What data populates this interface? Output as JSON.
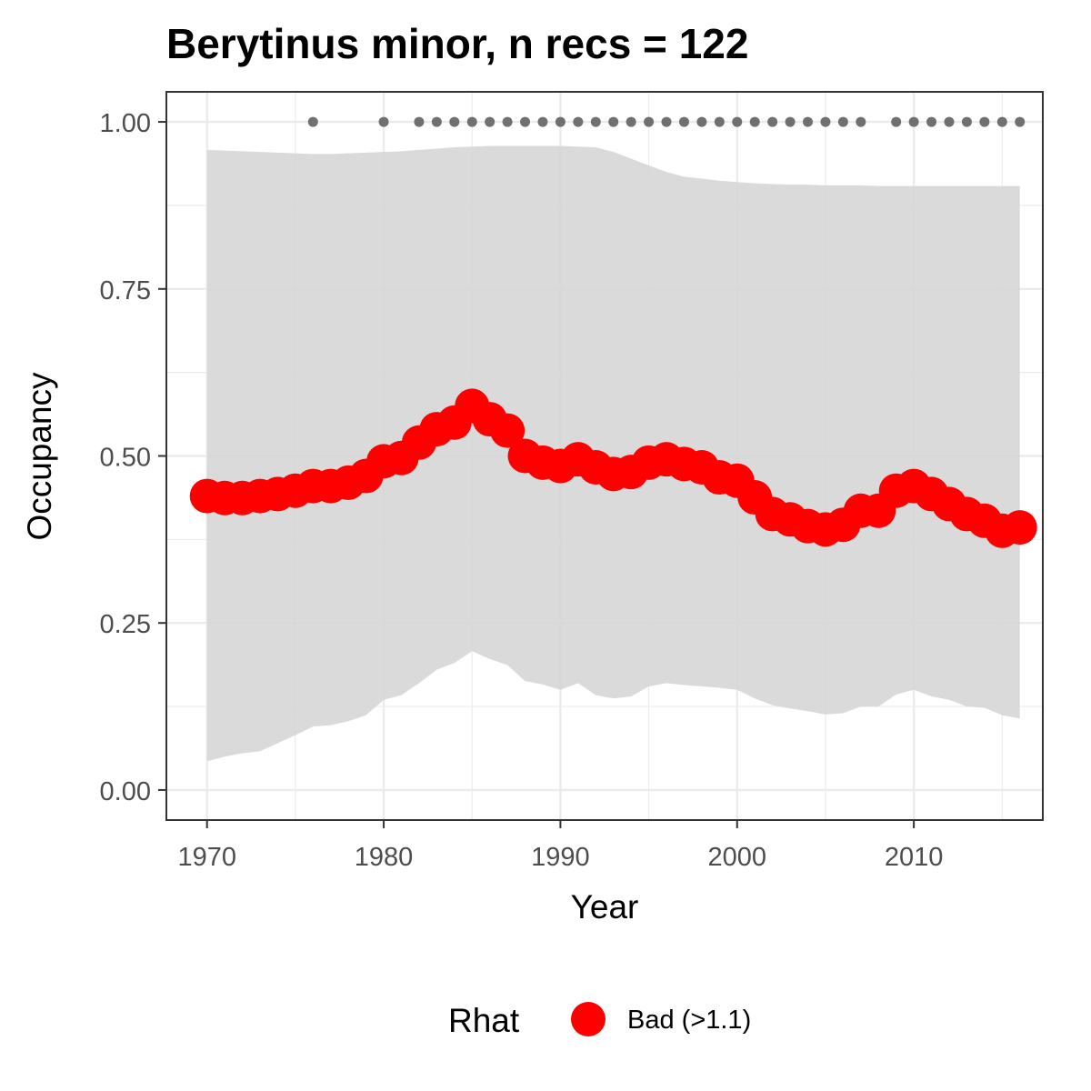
{
  "chart_data": {
    "type": "line",
    "title": "Berytinus minor, n recs = 122",
    "xlabel": "Year",
    "ylabel": "Occupancy",
    "xlim": [
      1967.7,
      2017.3
    ],
    "ylim": [
      -0.045,
      1.045
    ],
    "x_ticks": [
      1970,
      1980,
      1990,
      2000,
      2010
    ],
    "x_tick_labels": [
      "1970",
      "1980",
      "1990",
      "2000",
      "2010"
    ],
    "y_ticks": [
      0,
      0.25,
      0.5,
      0.75,
      1.0
    ],
    "y_tick_labels": [
      "0.00",
      "0.25",
      "0.50",
      "0.75",
      "1.00"
    ],
    "grid": true,
    "legend": {
      "title": "Rhat",
      "position": "bottom",
      "entries": [
        {
          "label": "Bad (>1.1)",
          "color": "#ff0000"
        }
      ]
    },
    "colors": {
      "points": "#ff0000",
      "ribbon": "#d6d6d6",
      "record_dots": "#707070",
      "panel_border": "#333333",
      "grid_major": "#ebebeb"
    },
    "x": [
      1970,
      1971,
      1972,
      1973,
      1974,
      1975,
      1976,
      1977,
      1978,
      1979,
      1980,
      1981,
      1982,
      1983,
      1984,
      1985,
      1986,
      1987,
      1988,
      1989,
      1990,
      1991,
      1992,
      1993,
      1994,
      1995,
      1996,
      1997,
      1998,
      1999,
      2000,
      2001,
      2002,
      2003,
      2004,
      2005,
      2006,
      2007,
      2008,
      2009,
      2010,
      2011,
      2012,
      2013,
      2014,
      2015,
      2016
    ],
    "series": [
      {
        "name": "Bad (>1.1)",
        "values": [
          0.44,
          0.437,
          0.437,
          0.44,
          0.443,
          0.448,
          0.455,
          0.455,
          0.46,
          0.47,
          0.492,
          0.497,
          0.52,
          0.54,
          0.55,
          0.575,
          0.555,
          0.538,
          0.5,
          0.49,
          0.485,
          0.495,
          0.483,
          0.473,
          0.476,
          0.49,
          0.495,
          0.488,
          0.483,
          0.468,
          0.463,
          0.438,
          0.413,
          0.405,
          0.395,
          0.39,
          0.397,
          0.418,
          0.418,
          0.448,
          0.455,
          0.443,
          0.428,
          0.413,
          0.403,
          0.388,
          0.393
        ]
      }
    ],
    "ribbon": {
      "lower": [
        0.043,
        0.05,
        0.055,
        0.058,
        0.07,
        0.082,
        0.095,
        0.097,
        0.103,
        0.112,
        0.135,
        0.142,
        0.16,
        0.18,
        0.19,
        0.208,
        0.196,
        0.187,
        0.163,
        0.158,
        0.15,
        0.16,
        0.142,
        0.137,
        0.14,
        0.155,
        0.16,
        0.157,
        0.155,
        0.153,
        0.15,
        0.137,
        0.127,
        0.122,
        0.118,
        0.113,
        0.115,
        0.125,
        0.125,
        0.143,
        0.15,
        0.14,
        0.135,
        0.125,
        0.123,
        0.112,
        0.107
      ],
      "upper": [
        0.958,
        0.957,
        0.956,
        0.955,
        0.954,
        0.953,
        0.952,
        0.952,
        0.953,
        0.954,
        0.955,
        0.956,
        0.958,
        0.96,
        0.962,
        0.963,
        0.964,
        0.964,
        0.964,
        0.964,
        0.964,
        0.963,
        0.962,
        0.955,
        0.945,
        0.935,
        0.925,
        0.918,
        0.915,
        0.912,
        0.91,
        0.908,
        0.907,
        0.906,
        0.906,
        0.905,
        0.905,
        0.905,
        0.904,
        0.904,
        0.904,
        0.904,
        0.904,
        0.904,
        0.904,
        0.904,
        0.904
      ]
    },
    "record_years": [
      1976,
      1980,
      1982,
      1983,
      1984,
      1985,
      1986,
      1987,
      1988,
      1989,
      1990,
      1991,
      1992,
      1993,
      1994,
      1995,
      1996,
      1997,
      1998,
      1999,
      2000,
      2001,
      2002,
      2003,
      2004,
      2005,
      2006,
      2007,
      2009,
      2010,
      2011,
      2012,
      2013,
      2014,
      2015,
      2016
    ],
    "record_value": 1.0
  }
}
